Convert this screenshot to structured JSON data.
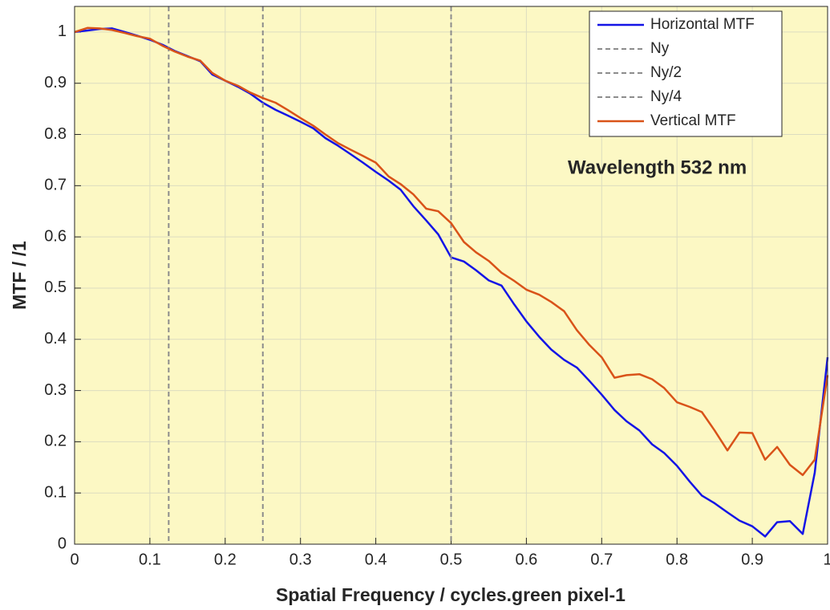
{
  "chart_data": {
    "type": "line",
    "xlabel": "Spatial Frequency / cycles.green pixel-1",
    "ylabel": "MTF / /1",
    "annotation": "Wavelength 532 nm",
    "xlim": [
      0,
      1
    ],
    "ylim": [
      0,
      1.05
    ],
    "xticks": [
      0,
      0.1,
      0.2,
      0.3,
      0.4,
      0.5,
      0.6,
      0.7,
      0.8,
      0.9,
      1
    ],
    "yticks": [
      0,
      0.1,
      0.2,
      0.3,
      0.4,
      0.5,
      0.6,
      0.7,
      0.8,
      0.9,
      1
    ],
    "grid": true,
    "legend": "upper right",
    "x": [
      0,
      0.017,
      0.033,
      0.05,
      0.067,
      0.083,
      0.1,
      0.117,
      0.133,
      0.15,
      0.167,
      0.183,
      0.2,
      0.217,
      0.233,
      0.25,
      0.267,
      0.283,
      0.3,
      0.317,
      0.333,
      0.35,
      0.367,
      0.383,
      0.4,
      0.417,
      0.433,
      0.45,
      0.467,
      0.483,
      0.5,
      0.517,
      0.533,
      0.55,
      0.567,
      0.583,
      0.6,
      0.617,
      0.633,
      0.65,
      0.667,
      0.683,
      0.7,
      0.717,
      0.733,
      0.75,
      0.767,
      0.783,
      0.8,
      0.817,
      0.833,
      0.85,
      0.867,
      0.883,
      0.9,
      0.917,
      0.933,
      0.95,
      0.967,
      0.983,
      1
    ],
    "series": [
      {
        "name": "Horizontal MTF",
        "color": "#1414e6",
        "values": [
          1.0,
          1.003,
          1.006,
          1.007,
          1.0,
          0.993,
          0.985,
          0.975,
          0.963,
          0.953,
          0.943,
          0.917,
          0.905,
          0.893,
          0.88,
          0.862,
          0.848,
          0.837,
          0.825,
          0.812,
          0.793,
          0.778,
          0.761,
          0.745,
          0.727,
          0.71,
          0.692,
          0.66,
          0.632,
          0.605,
          0.56,
          0.552,
          0.535,
          0.515,
          0.505,
          0.47,
          0.435,
          0.405,
          0.38,
          0.36,
          0.345,
          0.32,
          0.292,
          0.262,
          0.24,
          0.222,
          0.195,
          0.178,
          0.153,
          0.122,
          0.095,
          0.08,
          0.062,
          0.046,
          0.035,
          0.015,
          0.043,
          0.045,
          0.02,
          0.14,
          0.365
        ]
      },
      {
        "name": "Ny",
        "color": "#8c8c8c",
        "style": "dashed",
        "at": 0.5
      },
      {
        "name": "Ny/2",
        "color": "#8c8c8c",
        "style": "dashed",
        "at": 0.25
      },
      {
        "name": "Ny/4",
        "color": "#8c8c8c",
        "style": "dashed",
        "at": 0.125
      },
      {
        "name": "Vertical MTF",
        "color": "#d95319",
        "values": [
          1.0,
          1.008,
          1.007,
          1.004,
          0.998,
          0.992,
          0.987,
          0.973,
          0.962,
          0.952,
          0.944,
          0.92,
          0.905,
          0.895,
          0.882,
          0.871,
          0.862,
          0.848,
          0.832,
          0.817,
          0.8,
          0.783,
          0.77,
          0.758,
          0.745,
          0.718,
          0.703,
          0.683,
          0.655,
          0.65,
          0.627,
          0.59,
          0.57,
          0.553,
          0.53,
          0.515,
          0.497,
          0.487,
          0.473,
          0.455,
          0.418,
          0.39,
          0.365,
          0.325,
          0.33,
          0.332,
          0.322,
          0.305,
          0.277,
          0.268,
          0.258,
          0.222,
          0.183,
          0.218,
          0.217,
          0.165,
          0.19,
          0.155,
          0.135,
          0.165,
          0.33
        ]
      }
    ]
  }
}
